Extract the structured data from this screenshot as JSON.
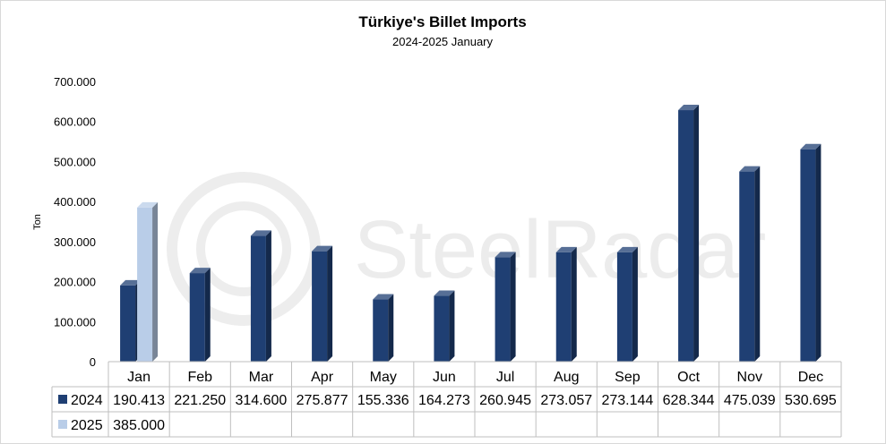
{
  "chart_data": {
    "type": "bar",
    "title": "Türkiye's Billet Imports",
    "subtitle": "2024-2025 January",
    "ylabel": "Ton",
    "ylim": [
      0,
      700000
    ],
    "yticks": [
      0,
      100000,
      200000,
      300000,
      400000,
      500000,
      600000,
      700000
    ],
    "ytick_labels": [
      "0",
      "100.000",
      "200.000",
      "300.000",
      "400.000",
      "500.000",
      "600.000",
      "700.000"
    ],
    "categories": [
      "Jan",
      "Feb",
      "Mar",
      "Apr",
      "May",
      "Jun",
      "Jul",
      "Aug",
      "Sep",
      "Oct",
      "Nov",
      "Dec"
    ],
    "series": [
      {
        "name": "2024",
        "color": "#1f3f73",
        "values": [
          190413,
          221250,
          314600,
          275877,
          155336,
          164273,
          260945,
          273057,
          273144,
          628344,
          475039,
          530695
        ],
        "labels": [
          "190.413",
          "221.250",
          "314.600",
          "275.877",
          "155.336",
          "164.273",
          "260.945",
          "273.057",
          "273.144",
          "628.344",
          "475.039",
          "530.695"
        ]
      },
      {
        "name": "2025",
        "color": "#b9cde8",
        "values": [
          385000,
          null,
          null,
          null,
          null,
          null,
          null,
          null,
          null,
          null,
          null,
          null
        ],
        "labels": [
          "385.000",
          "",
          "",
          "",
          "",
          "",
          "",
          "",
          "",
          "",
          "",
          ""
        ]
      }
    ],
    "data_table": true,
    "grid": false,
    "legend": "data-table"
  },
  "watermark": "SteelRadar"
}
